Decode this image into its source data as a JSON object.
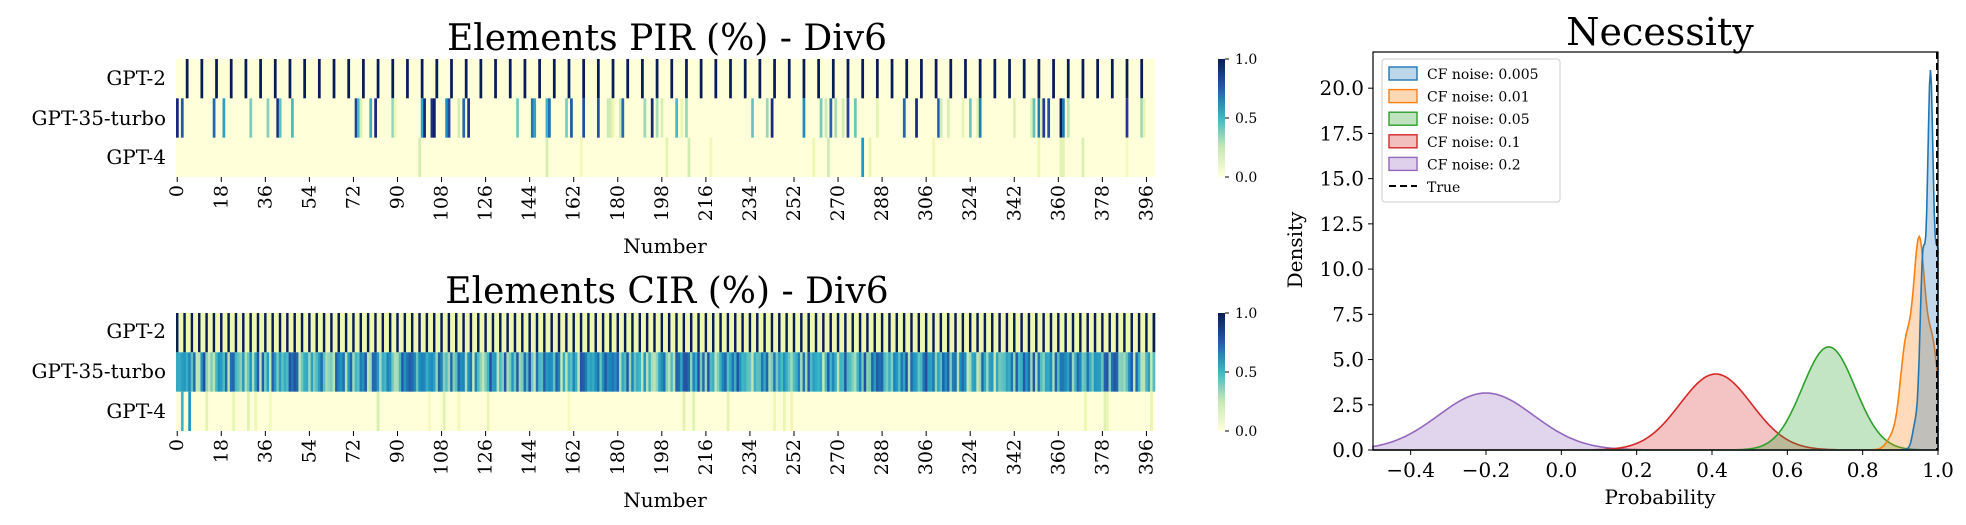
{
  "colors": {
    "heat_low": "#ffffd9",
    "heat_mid": "#41b6c4",
    "heat_high": "#081d58",
    "kde": [
      "#1f77b4",
      "#ff7f0e",
      "#2ca02c",
      "#d62728",
      "#9467bd"
    ],
    "true_line": "#000000"
  },
  "chart_data": [
    {
      "type": "heatmap",
      "title": "Elements PIR (%) - Div6",
      "xlabel": "Number",
      "rows": [
        "GPT-2",
        "GPT-35-turbo",
        "GPT-4"
      ],
      "n_columns": 400,
      "xticks": [
        0,
        18,
        36,
        54,
        72,
        90,
        108,
        126,
        144,
        162,
        180,
        198,
        216,
        234,
        252,
        270,
        288,
        306,
        324,
        342,
        360,
        378,
        396
      ],
      "colorbar": {
        "range": [
          0.0,
          1.0
        ],
        "ticks": [
          "0.0",
          "0.5",
          "1.0"
        ]
      },
      "cells": [
        {
          "row": "GPT-2",
          "background": 0.0,
          "pattern": "value 1.0 at every 6th column starting at 4",
          "value": 1.0
        },
        {
          "row": "GPT-35-turbo",
          "background": 0.0,
          "pattern": "sparse columns with values 0.1–1.0",
          "value": null
        },
        {
          "row": "GPT-4",
          "background": 0.0,
          "pattern": "few columns with low values; column ~280 near 0.6",
          "value": null
        }
      ]
    },
    {
      "type": "heatmap",
      "title": "Elements CIR (%) - Div6",
      "xlabel": "Number",
      "rows": [
        "GPT-2",
        "GPT-35-turbo",
        "GPT-4"
      ],
      "n_columns": 400,
      "xticks": [
        0,
        18,
        36,
        54,
        72,
        90,
        108,
        126,
        144,
        162,
        180,
        198,
        216,
        234,
        252,
        270,
        288,
        306,
        324,
        342,
        360,
        378,
        396
      ],
      "colorbar": {
        "range": [
          0.0,
          1.0
        ],
        "ticks": [
          "0.0",
          "0.5",
          "1.0"
        ]
      },
      "cells": [
        {
          "row": "GPT-2",
          "background": 0.1,
          "pattern": "value 1.0 at every 3rd column",
          "value": 1.0
        },
        {
          "row": "GPT-35-turbo",
          "background": 0.3,
          "pattern": "dense columns with values 0.2–0.8",
          "value": null
        },
        {
          "row": "GPT-4",
          "background": 0.0,
          "pattern": "sparse low values; column 2 near 0.5, column 5 near 0.6",
          "value": null
        }
      ]
    },
    {
      "type": "area",
      "title": "Necessity",
      "xlabel": "Probability",
      "ylabel": "Density",
      "xlim": [
        -0.5,
        1.0
      ],
      "ylim": [
        0.0,
        22.0
      ],
      "xticks": [
        "−0.4",
        "−0.2",
        "0.0",
        "0.2",
        "0.4",
        "0.6",
        "0.8",
        "1.0"
      ],
      "yticks": [
        "0.0",
        "2.5",
        "5.0",
        "7.5",
        "10.0",
        "12.5",
        "15.0",
        "17.5",
        "20.0"
      ],
      "legend_position": "top-left",
      "series": [
        {
          "name": "CF noise: 0.005",
          "peak_x": 0.98,
          "peak_density": 21.0
        },
        {
          "name": "CF noise: 0.01",
          "peak_x": 0.95,
          "peak_density": 11.8
        },
        {
          "name": "CF noise: 0.05",
          "peak_x": 0.71,
          "peak_density": 5.7
        },
        {
          "name": "CF noise: 0.1",
          "peak_x": 0.41,
          "peak_density": 4.2
        },
        {
          "name": "CF noise: 0.2",
          "peak_x": -0.2,
          "peak_density": 3.15
        }
      ],
      "reference_line": {
        "name": "True",
        "x": 1.0
      }
    }
  ]
}
